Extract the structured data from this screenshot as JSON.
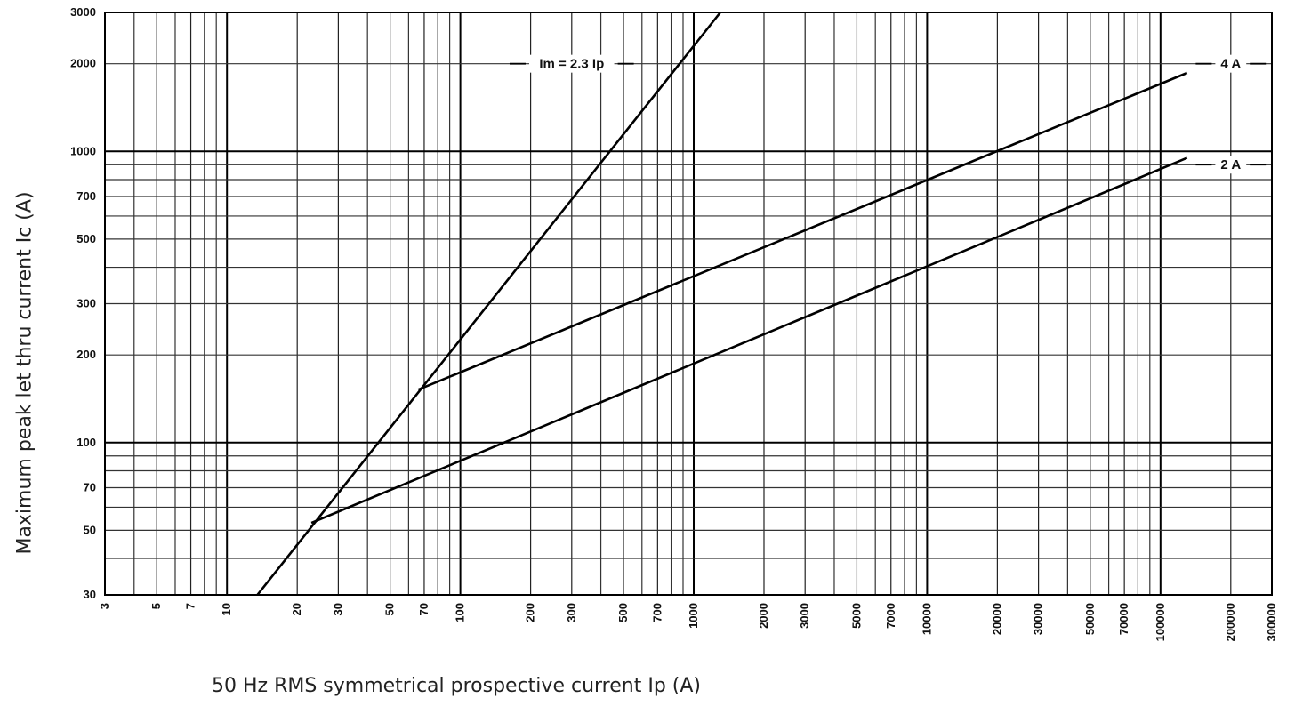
{
  "chart_data": {
    "type": "line",
    "title": "",
    "xlabel": "50 Hz RMS symmetrical prospective current Ip (A)",
    "ylabel": "Maximum peak let thru current Ic (A)",
    "x_scale": "log",
    "y_scale": "log",
    "xlim": [
      3,
      300000
    ],
    "ylim": [
      30,
      3000
    ],
    "grid": true,
    "x_ticks": [
      3,
      5,
      7,
      10,
      20,
      30,
      50,
      70,
      100,
      200,
      300,
      500,
      700,
      1000,
      2000,
      3000,
      5000,
      7000,
      10000,
      20000,
      30000,
      50000,
      70000,
      100000,
      200000,
      300000
    ],
    "y_ticks": [
      30,
      50,
      70,
      100,
      200,
      300,
      500,
      700,
      1000,
      2000,
      3000
    ],
    "series": [
      {
        "name": "Im = 2.3 Ip",
        "points": [
          [
            13.5,
            30
          ],
          [
            1300,
            3000
          ]
        ]
      },
      {
        "name": "4 A",
        "points": [
          [
            66,
            152
          ],
          [
            130000,
            1860
          ]
        ]
      },
      {
        "name": "2 A",
        "points": [
          [
            23,
            53
          ],
          [
            130000,
            950
          ]
        ]
      }
    ]
  }
}
